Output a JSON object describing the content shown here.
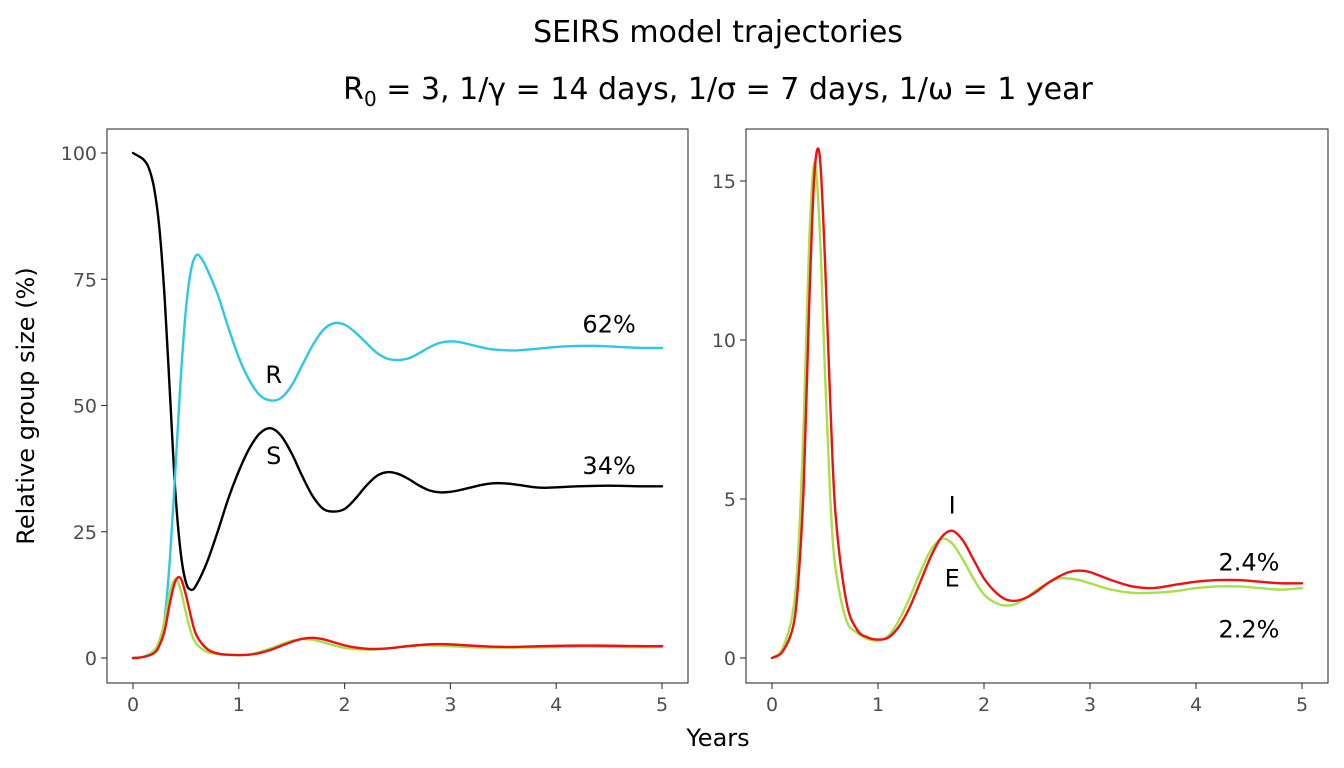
{
  "figure": {
    "title_line1": "SEIRS model trajectories",
    "title_r0_prefix": "R",
    "title_r0_sub": "0",
    "title_line2_rest": " = 3, 1/γ = 14 days, 1/σ = 7 days, 1/ω = 1 year",
    "xlabel": "Years",
    "ylabel": "Relative group size (%)"
  },
  "colors": {
    "S": "#000000",
    "E": "#a6e04a",
    "I": "#ee1111",
    "R": "#2ec7e6"
  },
  "chart_data": [
    {
      "type": "line",
      "panel": "left",
      "xlim": [
        0,
        5
      ],
      "ylim": [
        0,
        100
      ],
      "x_ticks": [
        0,
        1,
        2,
        3,
        4,
        5
      ],
      "y_ticks": [
        0,
        25,
        50,
        75,
        100
      ],
      "x_tick_labels": [
        "0",
        "1",
        "2",
        "3",
        "4",
        "5"
      ],
      "y_tick_labels": [
        "0",
        "25",
        "50",
        "75",
        "100"
      ],
      "grid": false,
      "series": [
        {
          "name": "S",
          "color_key": "S",
          "x": [
            0,
            0.05,
            0.1,
            0.15,
            0.2,
            0.25,
            0.3,
            0.35,
            0.4,
            0.45,
            0.5,
            0.55,
            0.6,
            0.7,
            0.8,
            0.9,
            1.0,
            1.1,
            1.2,
            1.3,
            1.4,
            1.5,
            1.6,
            1.7,
            1.8,
            1.9,
            2.0,
            2.1,
            2.2,
            2.3,
            2.4,
            2.5,
            2.6,
            2.7,
            2.8,
            2.9,
            3.0,
            3.1,
            3.2,
            3.3,
            3.4,
            3.5,
            3.6,
            3.7,
            3.8,
            3.9,
            4.0,
            4.2,
            4.4,
            4.6,
            4.8,
            5.0
          ],
          "y": [
            100,
            99.4,
            98.7,
            97,
            93,
            85,
            71,
            52,
            33,
            21,
            15,
            13.5,
            14.5,
            19,
            25,
            31.5,
            37,
            41.5,
            44.5,
            45.5,
            44,
            40.5,
            36,
            32,
            29.5,
            29,
            29.5,
            31.5,
            34,
            36,
            36.8,
            36.5,
            35.5,
            34.2,
            33.2,
            32.8,
            32.9,
            33.3,
            33.8,
            34.3,
            34.6,
            34.6,
            34.4,
            34.1,
            33.8,
            33.7,
            33.8,
            34,
            34.1,
            34.1,
            34,
            34
          ]
        },
        {
          "name": "R",
          "color_key": "R",
          "x": [
            0,
            0.1,
            0.2,
            0.25,
            0.3,
            0.35,
            0.4,
            0.45,
            0.5,
            0.55,
            0.6,
            0.65,
            0.7,
            0.8,
            0.9,
            1.0,
            1.1,
            1.2,
            1.3,
            1.4,
            1.5,
            1.6,
            1.7,
            1.8,
            1.9,
            2.0,
            2.1,
            2.2,
            2.3,
            2.4,
            2.5,
            2.6,
            2.7,
            2.8,
            2.9,
            3.0,
            3.1,
            3.2,
            3.3,
            3.4,
            3.6,
            3.8,
            4.0,
            4.2,
            4.4,
            4.6,
            4.8,
            5.0
          ],
          "y": [
            0,
            0.2,
            1,
            3,
            8,
            20,
            37,
            55,
            69,
            77,
            79.8,
            79,
            77,
            72,
            65.5,
            59.5,
            55,
            52,
            51,
            51.5,
            54,
            58,
            62,
            65,
            66.3,
            66,
            64.5,
            62.5,
            60.5,
            59.3,
            59,
            59.3,
            60.3,
            61.5,
            62.4,
            62.7,
            62.5,
            62,
            61.5,
            61.1,
            60.9,
            61.2,
            61.6,
            61.8,
            61.8,
            61.6,
            61.4,
            61.4
          ]
        },
        {
          "name": "E",
          "color_key": "E",
          "x": [
            0,
            0.1,
            0.2,
            0.25,
            0.3,
            0.35,
            0.4,
            0.45,
            0.5,
            0.55,
            0.6,
            0.7,
            0.8,
            0.9,
            1.0,
            1.1,
            1.2,
            1.3,
            1.4,
            1.5,
            1.6,
            1.7,
            1.8,
            1.9,
            2.0,
            2.1,
            2.2,
            2.3,
            2.4,
            2.5,
            2.6,
            2.7,
            2.8,
            2.9,
            3.0,
            3.2,
            3.4,
            3.6,
            3.8,
            4.0,
            4.2,
            4.4,
            4.6,
            4.8,
            5.0
          ],
          "y": [
            0,
            0.3,
            1.5,
            3.5,
            7.5,
            13,
            15.6,
            13.5,
            9,
            5,
            2.8,
            1.2,
            0.8,
            0.6,
            0.55,
            0.7,
            1.2,
            1.9,
            2.7,
            3.4,
            3.75,
            3.6,
            3.1,
            2.5,
            2.0,
            1.75,
            1.65,
            1.7,
            1.9,
            2.15,
            2.35,
            2.5,
            2.5,
            2.45,
            2.35,
            2.15,
            2.05,
            2.05,
            2.1,
            2.2,
            2.25,
            2.25,
            2.2,
            2.15,
            2.2
          ]
        },
        {
          "name": "I",
          "color_key": "I",
          "x": [
            0,
            0.1,
            0.2,
            0.25,
            0.3,
            0.35,
            0.4,
            0.45,
            0.5,
            0.55,
            0.6,
            0.7,
            0.8,
            0.9,
            1.0,
            1.1,
            1.2,
            1.3,
            1.4,
            1.5,
            1.6,
            1.7,
            1.8,
            1.9,
            2.0,
            2.1,
            2.2,
            2.3,
            2.4,
            2.5,
            2.6,
            2.7,
            2.8,
            2.9,
            3.0,
            3.2,
            3.4,
            3.6,
            3.8,
            4.0,
            4.2,
            4.4,
            4.6,
            4.8,
            5.0
          ],
          "y": [
            0,
            0.2,
            1.0,
            2.5,
            5.5,
            11,
            15.2,
            15.8,
            12.5,
            8,
            4.5,
            1.8,
            0.9,
            0.65,
            0.58,
            0.65,
            1.0,
            1.6,
            2.4,
            3.2,
            3.8,
            4.0,
            3.7,
            3.1,
            2.5,
            2.1,
            1.85,
            1.8,
            1.9,
            2.1,
            2.35,
            2.55,
            2.7,
            2.75,
            2.7,
            2.45,
            2.25,
            2.2,
            2.3,
            2.4,
            2.45,
            2.45,
            2.4,
            2.35,
            2.35
          ]
        }
      ],
      "annotations": [
        {
          "text": "R",
          "x": 1.33,
          "y": 56
        },
        {
          "text": "S",
          "x": 1.33,
          "y": 40
        },
        {
          "text": "62%",
          "x": 4.5,
          "y": 66
        },
        {
          "text": "34%",
          "x": 4.5,
          "y": 38
        }
      ]
    },
    {
      "type": "line",
      "panel": "right",
      "xlim": [
        0,
        5
      ],
      "ylim": [
        0,
        16
      ],
      "x_ticks": [
        0,
        1,
        2,
        3,
        4,
        5
      ],
      "y_ticks": [
        0,
        5,
        10,
        15
      ],
      "x_tick_labels": [
        "0",
        "1",
        "2",
        "3",
        "4",
        "5"
      ],
      "y_tick_labels": [
        "0",
        "5",
        "10",
        "15"
      ],
      "grid": false,
      "series": [
        {
          "name": "E",
          "color_key": "E",
          "x": [
            0,
            0.1,
            0.2,
            0.25,
            0.3,
            0.35,
            0.4,
            0.45,
            0.5,
            0.55,
            0.6,
            0.7,
            0.8,
            0.9,
            1.0,
            1.1,
            1.2,
            1.3,
            1.4,
            1.5,
            1.6,
            1.7,
            1.8,
            1.9,
            2.0,
            2.1,
            2.2,
            2.3,
            2.4,
            2.5,
            2.6,
            2.7,
            2.8,
            2.9,
            3.0,
            3.2,
            3.4,
            3.6,
            3.8,
            4.0,
            4.2,
            4.4,
            4.6,
            4.8,
            5.0
          ],
          "y": [
            0,
            0.3,
            1.5,
            3.5,
            7.5,
            13,
            15.6,
            13.5,
            9,
            5,
            2.8,
            1.2,
            0.8,
            0.6,
            0.55,
            0.7,
            1.2,
            1.9,
            2.7,
            3.4,
            3.75,
            3.6,
            3.1,
            2.5,
            2.0,
            1.75,
            1.65,
            1.7,
            1.9,
            2.15,
            2.35,
            2.5,
            2.5,
            2.45,
            2.35,
            2.15,
            2.05,
            2.05,
            2.1,
            2.2,
            2.25,
            2.25,
            2.2,
            2.15,
            2.2
          ]
        },
        {
          "name": "I",
          "color_key": "I",
          "x": [
            0,
            0.1,
            0.2,
            0.25,
            0.3,
            0.35,
            0.4,
            0.45,
            0.5,
            0.55,
            0.6,
            0.7,
            0.8,
            0.9,
            1.0,
            1.1,
            1.2,
            1.3,
            1.4,
            1.5,
            1.6,
            1.7,
            1.8,
            1.9,
            2.0,
            2.1,
            2.2,
            2.3,
            2.4,
            2.5,
            2.6,
            2.7,
            2.8,
            2.9,
            3.0,
            3.2,
            3.4,
            3.6,
            3.8,
            4.0,
            4.2,
            4.4,
            4.6,
            4.8,
            5.0
          ],
          "y": [
            0,
            0.2,
            1.0,
            2.5,
            5.5,
            11,
            15.2,
            15.8,
            12.5,
            8,
            4.5,
            1.8,
            0.9,
            0.65,
            0.58,
            0.65,
            1.0,
            1.6,
            2.4,
            3.2,
            3.8,
            4.0,
            3.7,
            3.1,
            2.5,
            2.1,
            1.85,
            1.8,
            1.9,
            2.1,
            2.35,
            2.55,
            2.7,
            2.75,
            2.7,
            2.45,
            2.25,
            2.2,
            2.3,
            2.4,
            2.45,
            2.45,
            2.4,
            2.35,
            2.35
          ]
        }
      ],
      "annotations": [
        {
          "text": "I",
          "x": 1.7,
          "y": 4.8
        },
        {
          "text": "E",
          "x": 1.7,
          "y": 2.5
        },
        {
          "text": "2.4%",
          "x": 4.5,
          "y": 3.0
        },
        {
          "text": "2.2%",
          "x": 4.5,
          "y": 0.9
        }
      ]
    }
  ]
}
